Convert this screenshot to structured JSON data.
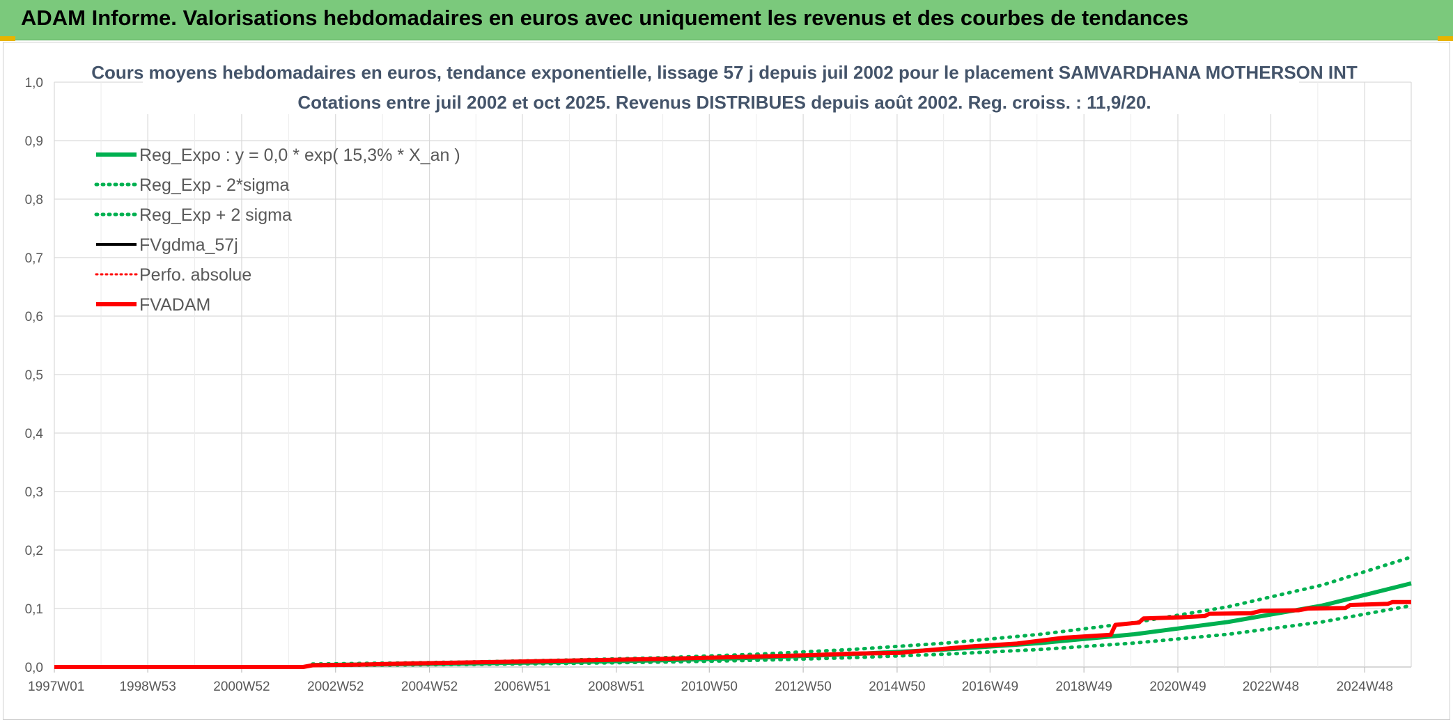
{
  "header": {
    "title": "ADAM Informe. Valorisations hebdomadaires en euros avec uniquement les revenus et des courbes de tendances",
    "banner_color": "#7bc97c"
  },
  "chart_data": {
    "type": "line",
    "title_line1": "Cours moyens hebdomadaires en euros, tendance exponentielle, lissage 57 j depuis juil 2002 pour le placement SAMVARDHANA MOTHERSON INT",
    "title_line2": "Cotations entre juil 2002 et oct 2025. Revenus DISTRIBUES depuis août 2002. Reg. croiss. : 11,9/20.",
    "ylim": [
      0,
      1.0
    ],
    "y_ticks": [
      "0,0",
      "0,1",
      "0,2",
      "0,3",
      "0,4",
      "0,5",
      "0,6",
      "0,7",
      "0,8",
      "0,9",
      "1,0"
    ],
    "x_range_years": [
      1997.0,
      2025.9
    ],
    "x_ticks": [
      {
        "label": "1997W01",
        "t": 1997.0
      },
      {
        "label": "1998W53",
        "t": 1998.99
      },
      {
        "label": "2000W52",
        "t": 2000.99
      },
      {
        "label": "2002W52",
        "t": 2002.99
      },
      {
        "label": "2004W52",
        "t": 2004.99
      },
      {
        "label": "2006W51",
        "t": 2006.97
      },
      {
        "label": "2008W51",
        "t": 2008.97
      },
      {
        "label": "2010W50",
        "t": 2010.95
      },
      {
        "label": "2012W50",
        "t": 2012.95
      },
      {
        "label": "2014W50",
        "t": 2014.95
      },
      {
        "label": "2016W49",
        "t": 2016.93
      },
      {
        "label": "2018W49",
        "t": 2018.93
      },
      {
        "label": "2020W49",
        "t": 2020.93
      },
      {
        "label": "2022W48",
        "t": 2022.91
      },
      {
        "label": "2024W48",
        "t": 2024.91
      }
    ],
    "legend_position": "top-left",
    "series": [
      {
        "name": "Reg_Expo : y = 0,0 * exp( 15,3% *  X_an )",
        "color": "#00b050",
        "style": "solid-thick",
        "points": [
          [
            2002.5,
            0.0035
          ],
          [
            2004,
            0.0045
          ],
          [
            2006,
            0.0063
          ],
          [
            2008,
            0.0085
          ],
          [
            2010,
            0.0115
          ],
          [
            2012,
            0.016
          ],
          [
            2014,
            0.022
          ],
          [
            2016,
            0.03
          ],
          [
            2018,
            0.041
          ],
          [
            2020,
            0.056
          ],
          [
            2022,
            0.077
          ],
          [
            2024,
            0.105
          ],
          [
            2025.9,
            0.143
          ]
        ]
      },
      {
        "name": "Reg_Exp - 2*sigma",
        "color": "#00b050",
        "style": "dotted",
        "points": [
          [
            2002.5,
            0.0025
          ],
          [
            2004,
            0.0032
          ],
          [
            2006,
            0.0045
          ],
          [
            2008,
            0.0062
          ],
          [
            2010,
            0.0085
          ],
          [
            2012,
            0.0115
          ],
          [
            2014,
            0.016
          ],
          [
            2016,
            0.022
          ],
          [
            2018,
            0.03
          ],
          [
            2020,
            0.041
          ],
          [
            2022,
            0.056
          ],
          [
            2024,
            0.077
          ],
          [
            2025.9,
            0.105
          ]
        ]
      },
      {
        "name": "Reg_Exp + 2 sigma",
        "color": "#00b050",
        "style": "dotted",
        "points": [
          [
            2002.5,
            0.005
          ],
          [
            2004,
            0.0065
          ],
          [
            2006,
            0.0088
          ],
          [
            2008,
            0.012
          ],
          [
            2010,
            0.016
          ],
          [
            2012,
            0.022
          ],
          [
            2014,
            0.03
          ],
          [
            2016,
            0.041
          ],
          [
            2018,
            0.056
          ],
          [
            2020,
            0.076
          ],
          [
            2022,
            0.103
          ],
          [
            2024,
            0.14
          ],
          [
            2025.9,
            0.188
          ]
        ]
      },
      {
        "name": "FVgdma_57j",
        "color": "#000000",
        "style": "solid",
        "points": []
      },
      {
        "name": "Perfo. absolue",
        "color": "#ff0000",
        "style": "dotted",
        "points": []
      },
      {
        "name": "FVADAM",
        "color": "#ff0000",
        "style": "solid-thick",
        "points": [
          [
            1997.0,
            0.0
          ],
          [
            2002.3,
            0.0
          ],
          [
            2002.5,
            0.003
          ],
          [
            2003.5,
            0.004
          ],
          [
            2004.5,
            0.006
          ],
          [
            2006,
            0.008
          ],
          [
            2008,
            0.011
          ],
          [
            2010,
            0.014
          ],
          [
            2012,
            0.018
          ],
          [
            2013,
            0.02
          ],
          [
            2014,
            0.023
          ],
          [
            2015.0,
            0.024
          ],
          [
            2015.5,
            0.028
          ],
          [
            2016.5,
            0.035
          ],
          [
            2017.5,
            0.04
          ],
          [
            2018.5,
            0.05
          ],
          [
            2019.5,
            0.055
          ],
          [
            2019.6,
            0.072
          ],
          [
            2020.1,
            0.076
          ],
          [
            2020.2,
            0.083
          ],
          [
            2021.0,
            0.085
          ],
          [
            2021.5,
            0.087
          ],
          [
            2021.6,
            0.091
          ],
          [
            2022.5,
            0.092
          ],
          [
            2022.7,
            0.096
          ],
          [
            2023.5,
            0.097
          ],
          [
            2023.7,
            0.1
          ],
          [
            2024.5,
            0.101
          ],
          [
            2024.6,
            0.106
          ],
          [
            2025.4,
            0.108
          ],
          [
            2025.5,
            0.111
          ],
          [
            2025.9,
            0.111
          ]
        ]
      }
    ]
  }
}
